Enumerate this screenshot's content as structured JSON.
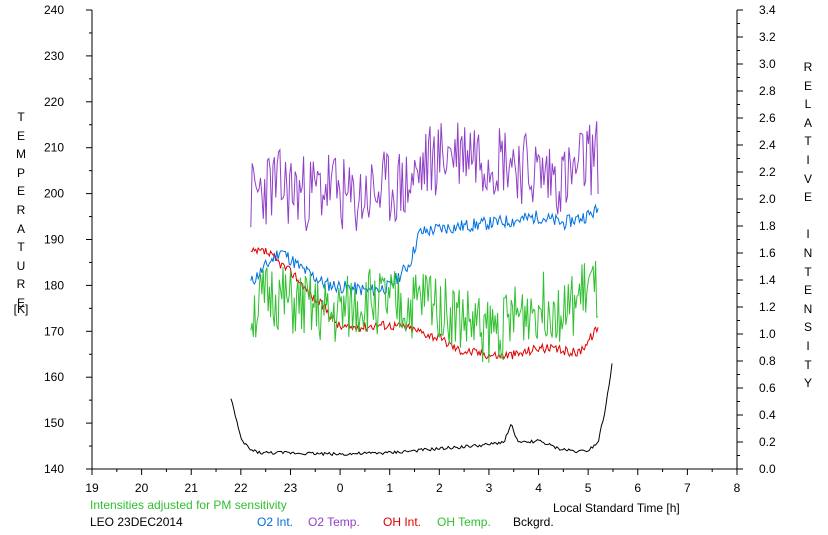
{
  "chart_data": {
    "type": "line",
    "left_axis": {
      "label_letters": [
        "T",
        "E",
        "M",
        "P",
        "E",
        "R",
        "A",
        "T",
        "U",
        "R",
        "E"
      ],
      "unit": "[K]",
      "range": [
        140,
        240
      ],
      "ticks": [
        "140",
        "150",
        "160",
        "170",
        "180",
        "190",
        "200",
        "210",
        "220",
        "230",
        "240"
      ]
    },
    "right_axis": {
      "label_letters": [
        "R",
        "E",
        "L",
        "A",
        "T",
        "I",
        "V",
        "E",
        "",
        "I",
        "N",
        "T",
        "E",
        "N",
        "S",
        "I",
        "T",
        "Y"
      ],
      "range": [
        0.0,
        3.4
      ],
      "ticks": [
        "0.0",
        "0.2",
        "0.4",
        "0.6",
        "0.8",
        "1.0",
        "1.2",
        "1.4",
        "1.6",
        "1.8",
        "2.0",
        "2.2",
        "2.4",
        "2.6",
        "2.8",
        "3.0",
        "3.2",
        "3.4"
      ]
    },
    "x_axis": {
      "label": "Local Standard Time [h]",
      "range": [
        -5,
        8
      ],
      "ticks": [
        "19",
        "20",
        "21",
        "22",
        "23",
        "0",
        "1",
        "2",
        "3",
        "4",
        "5",
        "6",
        "7",
        "8"
      ]
    },
    "note": "Intensities adjusted for PM sensitivity",
    "station": "LEO 23DEC2014",
    "series": [
      {
        "name": "O2 Int.",
        "color": "#0070e0",
        "axis": "right",
        "x": [
          -1.8,
          -1.5,
          -1.2,
          -0.8,
          -0.3,
          0.2,
          0.6,
          1.0,
          1.4,
          1.6,
          2.0,
          2.5,
          3.0,
          3.5,
          4.0,
          4.5,
          5.0,
          5.2
        ],
        "y": [
          1.38,
          1.5,
          1.62,
          1.49,
          1.37,
          1.34,
          1.32,
          1.35,
          1.52,
          1.75,
          1.78,
          1.8,
          1.82,
          1.84,
          1.87,
          1.82,
          1.88,
          1.92
        ]
      },
      {
        "name": "O2 Temp.",
        "color": "#9040c8",
        "axis": "left",
        "x": [
          -1.8,
          -1.4,
          -1.0,
          -0.6,
          -0.2,
          0.2,
          0.6,
          1.0,
          1.4,
          1.8,
          2.2,
          2.6,
          3.0,
          3.4,
          3.8,
          4.2,
          4.6,
          5.0,
          5.2
        ],
        "y": [
          199,
          202,
          201,
          200,
          202,
          198,
          200,
          201,
          202,
          207,
          209,
          210,
          208,
          208,
          205,
          204,
          203,
          208,
          208
        ]
      },
      {
        "name": "OH Int.",
        "color": "#e00000",
        "axis": "right",
        "x": [
          -1.8,
          -1.5,
          -1.2,
          -0.9,
          -0.6,
          -0.3,
          0.0,
          0.4,
          0.8,
          1.2,
          1.6,
          2.0,
          2.4,
          2.8,
          3.2,
          3.6,
          4.0,
          4.4,
          4.8,
          5.0,
          5.2
        ],
        "y": [
          1.6,
          1.61,
          1.52,
          1.43,
          1.29,
          1.19,
          1.05,
          1.05,
          1.07,
          1.06,
          1.02,
          0.97,
          0.88,
          0.86,
          0.84,
          0.85,
          0.9,
          0.88,
          0.86,
          0.95,
          1.05
        ]
      },
      {
        "name": "OH Temp.",
        "color": "#30c030",
        "axis": "left",
        "x": [
          -1.8,
          -1.4,
          -1.0,
          -0.6,
          -0.2,
          0.2,
          0.6,
          1.0,
          1.4,
          1.8,
          2.2,
          2.6,
          3.0,
          3.4,
          3.8,
          4.2,
          4.6,
          5.0,
          5.2
        ],
        "y": [
          174,
          178,
          176,
          175,
          173,
          175,
          177,
          176,
          175,
          178,
          174,
          172,
          170,
          172,
          175,
          176,
          174,
          180,
          178
        ]
      },
      {
        "name": "Bckgrd.",
        "color": "#000000",
        "axis": "right",
        "x": [
          -2.2,
          -2.0,
          -1.8,
          -1.6,
          -1.4,
          -1.0,
          0.0,
          1.0,
          2.0,
          3.0,
          3.3,
          3.45,
          3.6,
          4.0,
          4.4,
          4.8,
          5.0,
          5.2,
          5.35,
          5.5
        ],
        "y": [
          0.53,
          0.22,
          0.14,
          0.12,
          0.12,
          0.12,
          0.11,
          0.12,
          0.15,
          0.18,
          0.2,
          0.33,
          0.19,
          0.21,
          0.15,
          0.13,
          0.14,
          0.2,
          0.45,
          0.82
        ]
      }
    ]
  }
}
